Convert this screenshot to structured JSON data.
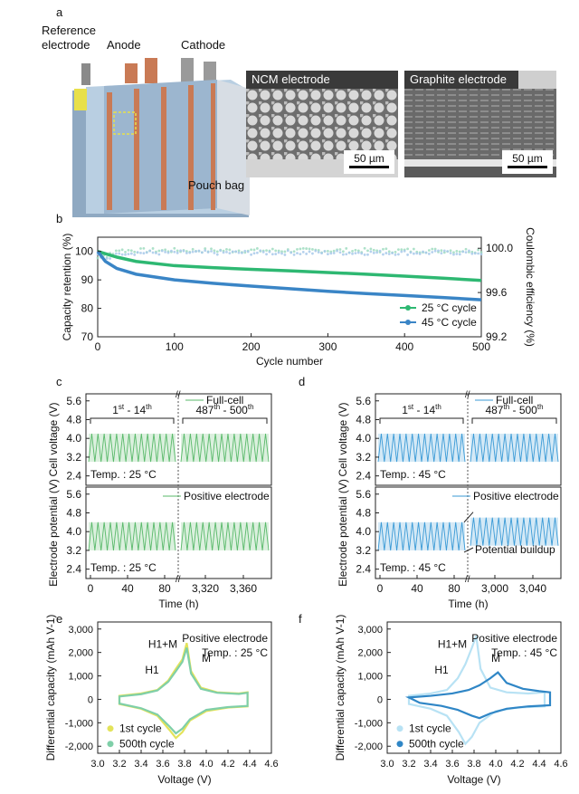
{
  "panels": {
    "a": {
      "letter": "a",
      "labels": {
        "reference": "Reference\nelectrode",
        "anode": "Anode",
        "cathode": "Cathode",
        "pouch": "Pouch bag"
      },
      "images": [
        {
          "title": "NCM electrode",
          "scale": "50 µm"
        },
        {
          "title": "Graphite electrode",
          "scale": "50 µm"
        }
      ]
    },
    "b": {
      "letter": "b"
    },
    "c": {
      "letter": "c"
    },
    "d": {
      "letter": "d"
    },
    "e": {
      "letter": "e"
    },
    "f": {
      "letter": "f"
    }
  },
  "chart_data": [
    {
      "id": "b",
      "type": "line",
      "xlabel": "Cycle number",
      "ylabel": "Capacity retention (%)",
      "y2label": "Coulombic efficiency (%)",
      "xlim": [
        0,
        500
      ],
      "ylim": [
        70,
        105
      ],
      "y2lim": [
        99.2,
        100.1
      ],
      "xticks": [
        "0",
        "100",
        "200",
        "300",
        "400",
        "500"
      ],
      "yticks": [
        "70",
        "80",
        "90",
        "100"
      ],
      "y2ticks": [
        "99.2",
        "99.6",
        "100.0"
      ],
      "legend_position": "bottom-right",
      "series": [
        {
          "name": "25 °C cycle",
          "color": "#2eb872",
          "x": [
            0,
            25,
            50,
            100,
            150,
            200,
            250,
            300,
            350,
            400,
            450,
            500
          ],
          "y": [
            100,
            98.0,
            96.5,
            95.0,
            94.3,
            93.7,
            93.2,
            92.6,
            92.0,
            91.3,
            90.6,
            89.8
          ]
        },
        {
          "name": "45 °C cycle",
          "color": "#3a85c6",
          "x": [
            0,
            10,
            25,
            50,
            100,
            150,
            200,
            250,
            300,
            350,
            400,
            450,
            500
          ],
          "y": [
            100,
            96.5,
            94.0,
            92.0,
            90.0,
            88.8,
            87.8,
            86.9,
            86.0,
            85.2,
            84.5,
            83.8,
            83.0
          ]
        }
      ],
      "ce_series": [
        {
          "color": "#9fdcc0",
          "level": 99.98
        },
        {
          "color": "#a8c9ea",
          "level": 99.96
        }
      ]
    },
    {
      "id": "c",
      "type": "line",
      "temperature": "Temp. : 25 °C",
      "top_ylabel": "Cell voltage (V)",
      "bottom_ylabel": "Electrode potential (V)",
      "xlabel": "Time (h)",
      "yticks": [
        "2.4",
        "3.2",
        "4.0",
        "4.8",
        "5.6"
      ],
      "xticks": [
        "0",
        "40",
        "80",
        "3,320",
        "3,360"
      ],
      "brackets": [
        "1st - 14th",
        "487th - 500th"
      ],
      "top_legend": "Full-cell",
      "bottom_legend": "Positive electrode",
      "color": "#59b96a",
      "cell_range": [
        3.0,
        4.2
      ],
      "electrode_range": [
        3.2,
        4.4
      ],
      "cycles_per_segment": 14
    },
    {
      "id": "d",
      "type": "line",
      "temperature": "Temp. : 45 °C",
      "top_ylabel": "Cell voltage (V)",
      "bottom_ylabel": "Electrode potential (V)",
      "xlabel": "Time (h)",
      "yticks": [
        "2.4",
        "3.2",
        "4.0",
        "4.8",
        "5.6"
      ],
      "xticks": [
        "0",
        "40",
        "80",
        "3,000",
        "3,040"
      ],
      "brackets": [
        "1st - 14th",
        "487th - 500th"
      ],
      "top_legend": "Full-cell",
      "bottom_legend": "Positive electrode",
      "annotation": "Potential buildup",
      "color": "#3a9ad6",
      "cell_range": [
        3.0,
        4.2
      ],
      "electrode_range": [
        3.2,
        4.4
      ],
      "electrode_range_late": [
        3.4,
        4.6
      ],
      "cycles_per_segment": 14
    },
    {
      "id": "e",
      "type": "line",
      "xlabel": "Voltage (V)",
      "ylabel": "Differential capacity (mAh V-1)",
      "xlim": [
        3.0,
        4.6
      ],
      "ylim": [
        -2300,
        3300
      ],
      "xticks": [
        "3.0",
        "3.2",
        "3.4",
        "3.6",
        "3.8",
        "4.0",
        "4.2",
        "4.4",
        "4.6"
      ],
      "yticks": [
        "-2,000",
        "-1,000",
        "0",
        "1,000",
        "2,000",
        "3,000"
      ],
      "label_main": "Positive electrode",
      "label_temp": "Temp. : 25 °C",
      "peaks": [
        "H1+M",
        "H1",
        "M"
      ],
      "series": [
        {
          "name": "1st cycle",
          "color": "#e3e35a",
          "charge": [
            [
              3.2,
              150
            ],
            [
              3.4,
              250
            ],
            [
              3.55,
              400
            ],
            [
              3.65,
              800
            ],
            [
              3.72,
              1300
            ],
            [
              3.78,
              1700
            ],
            [
              3.82,
              2400
            ],
            [
              3.86,
              1200
            ],
            [
              3.95,
              500
            ],
            [
              4.1,
              300
            ],
            [
              4.3,
              250
            ],
            [
              4.38,
              300
            ]
          ],
          "discharge": [
            [
              4.38,
              -300
            ],
            [
              4.2,
              -350
            ],
            [
              4.0,
              -500
            ],
            [
              3.85,
              -900
            ],
            [
              3.78,
              -1400
            ],
            [
              3.72,
              -1650
            ],
            [
              3.66,
              -1300
            ],
            [
              3.55,
              -700
            ],
            [
              3.4,
              -400
            ],
            [
              3.2,
              -200
            ]
          ]
        },
        {
          "name": "500th cycle",
          "color": "#7fcfa8",
          "charge": [
            [
              3.2,
              120
            ],
            [
              3.4,
              220
            ],
            [
              3.55,
              380
            ],
            [
              3.65,
              750
            ],
            [
              3.72,
              1200
            ],
            [
              3.78,
              1600
            ],
            [
              3.82,
              2200
            ],
            [
              3.86,
              1100
            ],
            [
              3.95,
              450
            ],
            [
              4.1,
              280
            ],
            [
              4.3,
              230
            ],
            [
              4.38,
              280
            ]
          ],
          "discharge": [
            [
              4.38,
              -280
            ],
            [
              4.2,
              -330
            ],
            [
              4.0,
              -450
            ],
            [
              3.85,
              -850
            ],
            [
              3.78,
              -1250
            ],
            [
              3.72,
              -1450
            ],
            [
              3.66,
              -1150
            ],
            [
              3.55,
              -650
            ],
            [
              3.4,
              -380
            ],
            [
              3.2,
              -180
            ]
          ]
        }
      ]
    },
    {
      "id": "f",
      "type": "line",
      "xlabel": "Voltage (V)",
      "ylabel": "Differential capacity (mAh V-1)",
      "xlim": [
        3.0,
        4.6
      ],
      "ylim": [
        -2300,
        3300
      ],
      "xticks": [
        "3.0",
        "3.2",
        "3.4",
        "3.6",
        "3.8",
        "4.0",
        "4.2",
        "4.4",
        "4.6"
      ],
      "yticks": [
        "-2,000",
        "-1,000",
        "0",
        "1,000",
        "2,000",
        "3,000"
      ],
      "label_main": "Positive electrode",
      "label_temp": "Temp. : 45 °C",
      "peaks": [
        "H1+M",
        "H1",
        "M"
      ],
      "series": [
        {
          "name": "1st cycle",
          "color": "#b8e2f4",
          "charge": [
            [
              3.2,
              150
            ],
            [
              3.4,
              250
            ],
            [
              3.55,
              400
            ],
            [
              3.65,
              900
            ],
            [
              3.72,
              1500
            ],
            [
              3.78,
              2200
            ],
            [
              3.82,
              2700
            ],
            [
              3.86,
              1300
            ],
            [
              3.95,
              500
            ],
            [
              4.1,
              300
            ],
            [
              4.3,
              250
            ],
            [
              4.45,
              300
            ]
          ],
          "discharge": [
            [
              4.45,
              -300
            ],
            [
              4.2,
              -350
            ],
            [
              4.0,
              -500
            ],
            [
              3.85,
              -1000
            ],
            [
              3.78,
              -1600
            ],
            [
              3.72,
              -1900
            ],
            [
              3.66,
              -1400
            ],
            [
              3.55,
              -700
            ],
            [
              3.4,
              -400
            ],
            [
              3.2,
              -200
            ]
          ]
        },
        {
          "name": "500th cycle",
          "color": "#2f86c6",
          "charge": [
            [
              3.2,
              80
            ],
            [
              3.4,
              150
            ],
            [
              3.6,
              250
            ],
            [
              3.75,
              400
            ],
            [
              3.85,
              600
            ],
            [
              3.95,
              900
            ],
            [
              4.02,
              1150
            ],
            [
              4.1,
              700
            ],
            [
              4.25,
              450
            ],
            [
              4.4,
              350
            ],
            [
              4.5,
              300
            ]
          ],
          "discharge": [
            [
              4.5,
              -250
            ],
            [
              4.3,
              -300
            ],
            [
              4.1,
              -400
            ],
            [
              3.95,
              -600
            ],
            [
              3.85,
              -800
            ],
            [
              3.78,
              -700
            ],
            [
              3.65,
              -450
            ],
            [
              3.5,
              -280
            ],
            [
              3.3,
              -150
            ]
          ]
        }
      ]
    }
  ]
}
